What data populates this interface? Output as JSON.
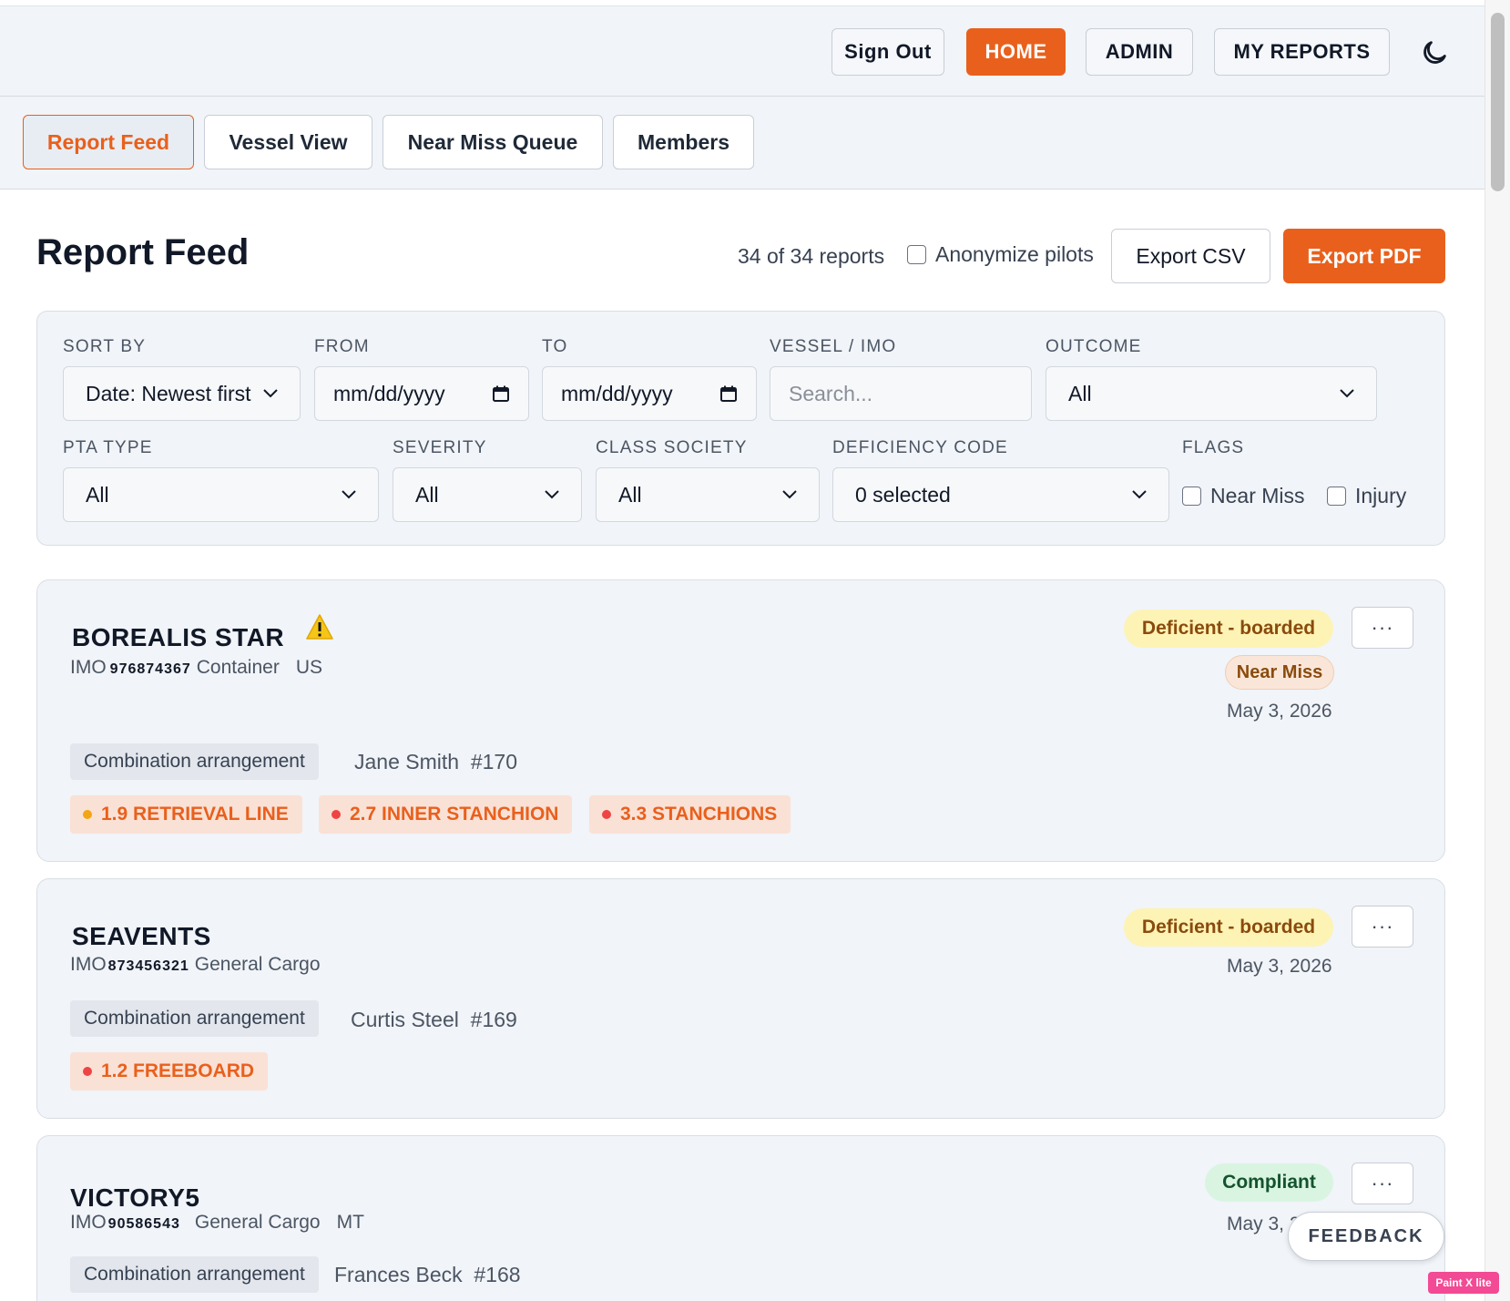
{
  "topnav": {
    "sign_out": "Sign Out",
    "home": "HOME",
    "admin": "ADMIN",
    "my_reports": "MY REPORTS",
    "theme_icon": "moon-icon"
  },
  "tabs": [
    {
      "label": "Report Feed",
      "active": true
    },
    {
      "label": "Vessel View",
      "active": false
    },
    {
      "label": "Near Miss Queue",
      "active": false
    },
    {
      "label": "Members",
      "active": false
    }
  ],
  "header": {
    "title": "Report Feed",
    "count": "34 of 34 reports",
    "anonymize_label": "Anonymize pilots",
    "anonymize_checked": false,
    "export_csv": "Export CSV",
    "export_pdf": "Export PDF"
  },
  "filters": {
    "sort_by": {
      "label": "SORT BY",
      "value": "Date: Newest first"
    },
    "from": {
      "label": "FROM",
      "value": "mm/dd/yyyy"
    },
    "to": {
      "label": "TO",
      "value": "mm/dd/yyyy"
    },
    "vessel": {
      "label": "VESSEL / IMO",
      "placeholder": "Search..."
    },
    "outcome": {
      "label": "OUTCOME",
      "value": "All"
    },
    "pta_type": {
      "label": "PTA TYPE",
      "value": "All"
    },
    "severity": {
      "label": "SEVERITY",
      "value": "All"
    },
    "class_society": {
      "label": "CLASS SOCIETY",
      "value": "All"
    },
    "deficiency_code": {
      "label": "DEFICIENCY CODE",
      "value": "0 selected"
    },
    "flags": {
      "label": "FLAGS",
      "near_miss": "Near Miss",
      "injury": "Injury"
    }
  },
  "reports": [
    {
      "vessel": "BOREALIS STAR",
      "imo_label": "IMO",
      "imo": "976874367",
      "type": "Container",
      "flag": "US",
      "warning_icon": "warning-icon",
      "outcome": "Deficient - boarded",
      "near_miss": "Near Miss",
      "date": "May 3, 2026",
      "arrangement": "Combination arrangement",
      "pilot": "Jane Smith",
      "pilot_no": "#170",
      "deficiencies": [
        {
          "label": "1.9 RETRIEVAL LINE",
          "color": "#f2a516"
        },
        {
          "label": "2.7 INNER STANCHION",
          "color": "#ef4444"
        },
        {
          "label": "3.3 STANCHIONS",
          "color": "#ef4444"
        }
      ]
    },
    {
      "vessel": "SEAVENTS",
      "imo_label": "IMO",
      "imo": "873456321",
      "type": "General Cargo",
      "flag": "",
      "outcome": "Deficient - boarded",
      "date": "May 3, 2026",
      "arrangement": "Combination arrangement",
      "pilot": "Curtis Steel",
      "pilot_no": "#169",
      "deficiencies": [
        {
          "label": "1.2 FREEBOARD",
          "color": "#ef4444"
        }
      ]
    },
    {
      "vessel": "VICTORY5",
      "imo_label": "IMO",
      "imo": "90586543",
      "type": "General Cargo",
      "flag": "MT",
      "outcome": "Compliant",
      "date": "May 3, 2026",
      "arrangement": "Combination arrangement",
      "pilot": "Frances Beck",
      "pilot_no": "#168",
      "deficiencies": []
    }
  ],
  "more_label": "···",
  "feedback": "FEEDBACK",
  "overlay_badge": "Paint X lite",
  "colors": {
    "accent": "#e9601c",
    "deficient_bg": "#fdf3b5",
    "compliant_bg": "#d9f5e2"
  }
}
